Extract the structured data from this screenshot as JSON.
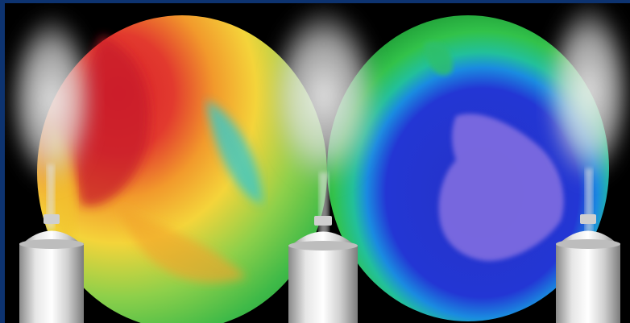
{
  "image": {
    "subject": "ozone-layer-and-aerosol-cans",
    "colors": {
      "background": "#000000",
      "frame": "#0d3370",
      "ozone_high": "#d9252b",
      "ozone_mid": "#f2c12e",
      "ozone_low": "#35b54a",
      "ozone_hole": "#1b2fc2",
      "continent": "#7a6be0",
      "spray": "#e9e9e9",
      "can": "#c9c9c9"
    },
    "icons": [
      "globe-left-icon",
      "globe-right-icon",
      "aerosol-can-icon",
      "spray-plume-icon"
    ]
  }
}
